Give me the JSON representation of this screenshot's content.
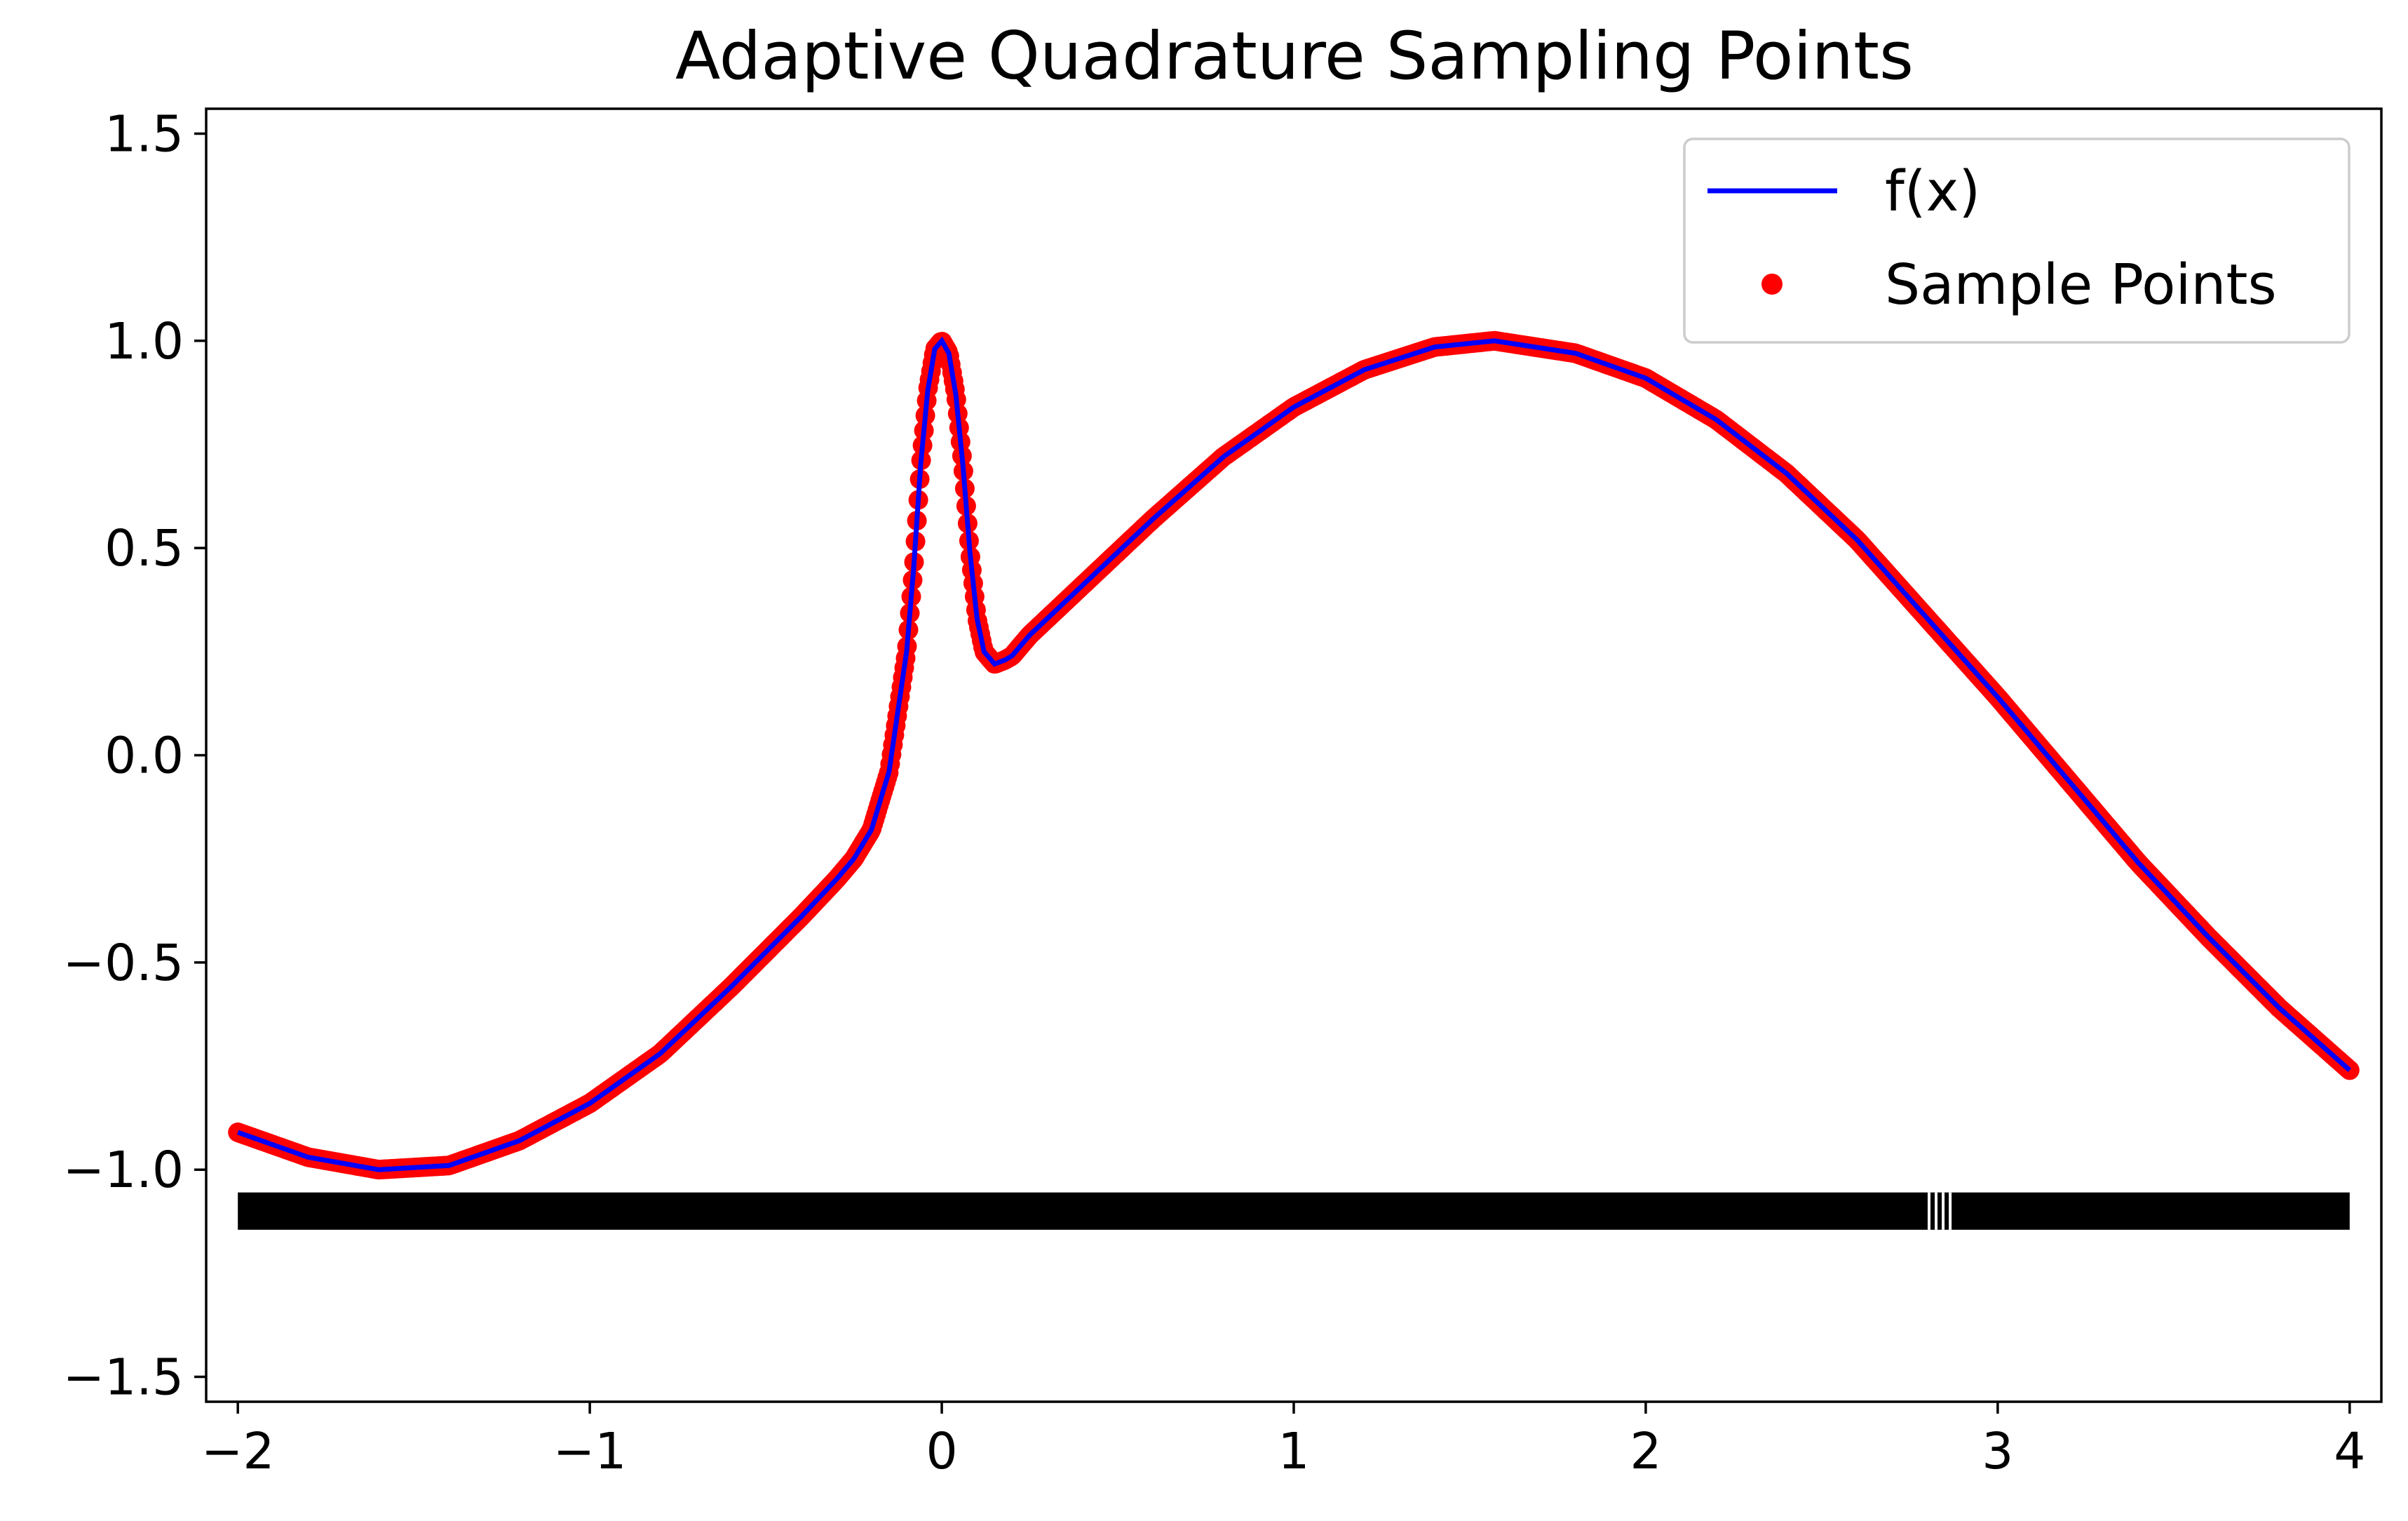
{
  "chart_data": {
    "type": "scatter",
    "title": "Adaptive Quadrature Sampling Points",
    "xlabel": "",
    "ylabel": "",
    "xlim": [
      -2.09,
      4.09
    ],
    "ylim": [
      -1.56,
      1.56
    ],
    "x_ticks": [
      -2,
      -1,
      0,
      1,
      2,
      3,
      4
    ],
    "x_tick_labels": [
      "−2",
      "−1",
      "0",
      "1",
      "2",
      "3",
      "4"
    ],
    "y_ticks": [
      -1.5,
      -1.0,
      -0.5,
      0.0,
      0.5,
      1.0,
      1.5
    ],
    "y_tick_labels": [
      "−1.5",
      "−1.0",
      "−0.5",
      "0.0",
      "0.5",
      "1.0",
      "1.5"
    ],
    "grid": false,
    "legend": {
      "position": "upper-right"
    },
    "series": [
      {
        "name": "f(x)",
        "kind": "line",
        "color": "#0000ff",
        "x": [
          -2.0,
          -1.8,
          -1.6,
          -1.4,
          -1.2,
          -1.0,
          -0.8,
          -0.6,
          -0.4,
          -0.3,
          -0.25,
          -0.2,
          -0.15,
          -0.1,
          -0.08,
          -0.06,
          -0.04,
          -0.02,
          0.0,
          0.02,
          0.04,
          0.06,
          0.08,
          0.1,
          0.12,
          0.15,
          0.18,
          0.2,
          0.25,
          0.3,
          0.4,
          0.5,
          0.6,
          0.8,
          1.0,
          1.2,
          1.4,
          1.57,
          1.8,
          2.0,
          2.2,
          2.4,
          2.6,
          2.8,
          3.0,
          3.2,
          3.4,
          3.6,
          3.8,
          4.0
        ],
        "y": [
          -0.91,
          -0.97,
          -1.0,
          -0.99,
          -0.93,
          -0.84,
          -0.72,
          -0.56,
          -0.39,
          -0.3,
          -0.25,
          -0.18,
          -0.04,
          0.25,
          0.45,
          0.7,
          0.88,
          0.98,
          1.0,
          0.97,
          0.87,
          0.7,
          0.49,
          0.33,
          0.25,
          0.22,
          0.23,
          0.24,
          0.29,
          0.33,
          0.41,
          0.49,
          0.57,
          0.72,
          0.84,
          0.93,
          0.985,
          1.0,
          0.97,
          0.91,
          0.81,
          0.68,
          0.52,
          0.33,
          0.14,
          -0.06,
          -0.26,
          -0.44,
          -0.61,
          -0.76
        ]
      },
      {
        "name": "Sample Points",
        "kind": "markers",
        "color": "#ff0000",
        "x_range": [
          -2.0,
          4.0
        ],
        "count": 1500
      }
    ],
    "rug": {
      "color": "#000000",
      "y": -1.1,
      "x_range": [
        -2.0,
        4.0
      ],
      "gaps_x": [
        2.805,
        2.825,
        2.845,
        2.865
      ]
    }
  }
}
